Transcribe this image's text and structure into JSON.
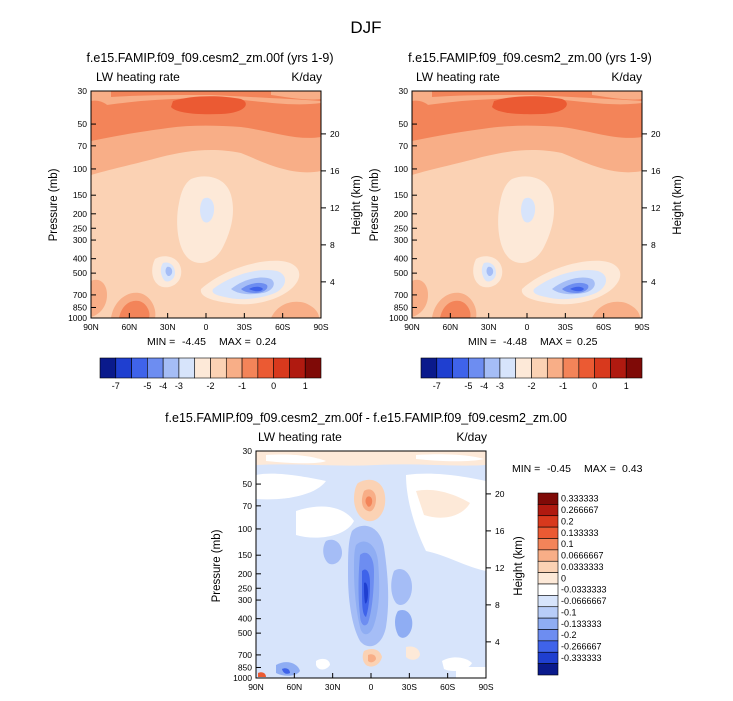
{
  "figure_title": "DJF",
  "chart_data": [
    {
      "type": "heatmap",
      "title": "f.e15.FAMIP.f09_f09.cesm2_zm.00f (yrs 1-9)",
      "left_string": "LW heating rate",
      "right_string": "K/day",
      "xlabel": "",
      "ylabel": "Pressure (mb)",
      "y2label": "Height (km)",
      "x_ticks": [
        "90N",
        "60N",
        "30N",
        "0",
        "30S",
        "60S",
        "90S"
      ],
      "y_ticks": [
        "30",
        "50",
        "70",
        "100",
        "150",
        "200",
        "250",
        "300",
        "400",
        "500",
        "700",
        "850",
        "1000"
      ],
      "y2_ticks": [
        "20",
        "16",
        "12",
        "8",
        "4"
      ],
      "y_scale": "log",
      "xlim": [
        "90N",
        "90S"
      ],
      "ylim": [
        1000,
        30
      ],
      "min_label": "MIN =",
      "min_value": "-4.45",
      "max_label": "MAX =",
      "max_value": "0.24",
      "colorbar_labels": [
        "-7",
        "-5",
        "-4",
        "-3",
        "-2",
        "-1",
        "0",
        "1"
      ]
    },
    {
      "type": "heatmap",
      "title": "f.e15.FAMIP.f09_f09.cesm2_zm.00 (yrs 1-9)",
      "left_string": "LW heating rate",
      "right_string": "K/day",
      "xlabel": "",
      "ylabel": "Pressure (mb)",
      "y2label": "Height (km)",
      "x_ticks": [
        "90N",
        "60N",
        "30N",
        "0",
        "30S",
        "60S",
        "90S"
      ],
      "y_ticks": [
        "30",
        "50",
        "70",
        "100",
        "150",
        "200",
        "250",
        "300",
        "400",
        "500",
        "700",
        "850",
        "1000"
      ],
      "y2_ticks": [
        "20",
        "16",
        "12",
        "8",
        "4"
      ],
      "y_scale": "log",
      "xlim": [
        "90N",
        "90S"
      ],
      "ylim": [
        1000,
        30
      ],
      "min_label": "MIN =",
      "min_value": "-4.48",
      "max_label": "MAX =",
      "max_value": "0.25",
      "colorbar_labels": [
        "-7",
        "-5",
        "-4",
        "-3",
        "-2",
        "-1",
        "0",
        "1"
      ]
    },
    {
      "type": "heatmap",
      "title": "f.e15.FAMIP.f09_f09.cesm2_zm.00f - f.e15.FAMIP.f09_f09.cesm2_zm.00",
      "left_string": "LW heating rate",
      "right_string": "K/day",
      "xlabel": "",
      "ylabel": "Pressure (mb)",
      "y2label": "Height (km)",
      "x_ticks": [
        "90N",
        "60N",
        "30N",
        "0",
        "30S",
        "60S",
        "90S"
      ],
      "y_ticks": [
        "30",
        "50",
        "70",
        "100",
        "150",
        "200",
        "250",
        "300",
        "400",
        "500",
        "700",
        "850",
        "1000"
      ],
      "y2_ticks": [
        "20",
        "16",
        "12",
        "8",
        "4"
      ],
      "y_scale": "log",
      "xlim": [
        "90N",
        "90S"
      ],
      "ylim": [
        1000,
        30
      ],
      "min_label": "MIN =",
      "min_value": "-0.45",
      "max_label": "MAX =",
      "max_value": "0.43",
      "colorbar_labels": [
        "0.333333",
        "0.266667",
        "0.2",
        "0.133333",
        "0.1",
        "0.0666667",
        "0.0333333",
        "0",
        "-0.0333333",
        "-0.0666667",
        "-0.1",
        "-0.133333",
        "-0.2",
        "-0.266667",
        "-0.333333"
      ]
    }
  ],
  "colors": {
    "abs_scale": [
      "#0a1a8c",
      "#1f3fd0",
      "#3f63ea",
      "#6d8df1",
      "#a5bdf6",
      "#d7e4fb",
      "#fde9d8",
      "#fbd2b4",
      "#f8ae87",
      "#f38459",
      "#eb5a33",
      "#d8391d",
      "#b01a10",
      "#7f0a07"
    ],
    "diff_scale": [
      "#7f0a07",
      "#b01a10",
      "#d8391d",
      "#eb5a33",
      "#f38459",
      "#f8ae87",
      "#fbd2b4",
      "#fde9d8",
      "#ffffff",
      "#d7e4fb",
      "#b8cdf8",
      "#8fadf3",
      "#6d8df1",
      "#3f63ea",
      "#1f3fd0",
      "#0a1a8c"
    ]
  }
}
